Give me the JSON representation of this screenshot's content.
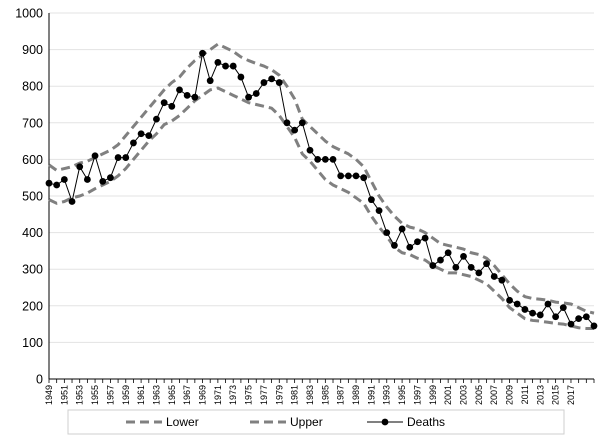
{
  "chart_data": {
    "type": "line",
    "title": "",
    "xlabel": "",
    "ylabel": "",
    "ylim": [
      0,
      1000
    ],
    "yticks": [
      0,
      100,
      200,
      300,
      400,
      500,
      600,
      700,
      800,
      900,
      1000
    ],
    "x": [
      1949,
      1950,
      1951,
      1952,
      1953,
      1954,
      1955,
      1956,
      1957,
      1958,
      1959,
      1960,
      1961,
      1962,
      1963,
      1964,
      1965,
      1966,
      1967,
      1968,
      1969,
      1970,
      1971,
      1972,
      1973,
      1974,
      1975,
      1976,
      1977,
      1978,
      1979,
      1980,
      1981,
      1982,
      1983,
      1984,
      1985,
      1986,
      1987,
      1988,
      1989,
      1990,
      1991,
      1992,
      1993,
      1994,
      1995,
      1996,
      1997,
      1998,
      1999,
      2000,
      2001,
      2002,
      2003,
      2004,
      2005,
      2006,
      2007,
      2008,
      2009,
      2010,
      2011,
      2012,
      2013,
      2014,
      2015,
      2016,
      2017,
      2018,
      2019,
      2020
    ],
    "xtick_labels": [
      "1949",
      "1951",
      "1953",
      "1955",
      "1957",
      "1959",
      "1961",
      "1963",
      "1965",
      "1967",
      "1969",
      "1971",
      "1973",
      "1975",
      "1977",
      "1979",
      "1981",
      "1983",
      "1985",
      "1987",
      "1989",
      "1991",
      "1993",
      "1995",
      "1997",
      "1999",
      "2001",
      "2003",
      "2005",
      "2007",
      "2009",
      "2011",
      "2013",
      "2015",
      "2017"
    ],
    "grid": "horizontal",
    "legend_position": "bottom",
    "series": [
      {
        "name": "Lower",
        "style": "dashed",
        "color": "#808080",
        "values": [
          490,
          480,
          485,
          495,
          500,
          508,
          520,
          530,
          540,
          555,
          575,
          600,
          625,
          650,
          670,
          695,
          705,
          720,
          740,
          760,
          775,
          790,
          795,
          785,
          775,
          765,
          755,
          750,
          745,
          740,
          720,
          690,
          660,
          615,
          595,
          570,
          545,
          530,
          520,
          510,
          495,
          480,
          445,
          415,
          390,
          360,
          345,
          340,
          330,
          325,
          310,
          300,
          290,
          290,
          285,
          280,
          270,
          260,
          240,
          220,
          195,
          180,
          165,
          160,
          158,
          155,
          152,
          150,
          145,
          140,
          138,
          138
        ]
      },
      {
        "name": "Upper",
        "style": "dashed",
        "color": "#808080",
        "values": [
          585,
          570,
          575,
          580,
          590,
          595,
          605,
          615,
          625,
          640,
          665,
          690,
          715,
          740,
          765,
          790,
          810,
          825,
          850,
          870,
          885,
          900,
          915,
          905,
          895,
          880,
          870,
          862,
          855,
          845,
          830,
          800,
          765,
          710,
          690,
          670,
          650,
          635,
          625,
          615,
          600,
          580,
          540,
          500,
          470,
          445,
          425,
          415,
          410,
          400,
          385,
          370,
          365,
          360,
          355,
          345,
          340,
          330,
          310,
          285,
          260,
          240,
          225,
          220,
          218,
          215,
          210,
          208,
          205,
          195,
          185,
          180
        ]
      },
      {
        "name": "Deaths",
        "style": "solid-markers",
        "color": "#000000",
        "values": [
          535,
          530,
          545,
          485,
          580,
          545,
          610,
          540,
          550,
          605,
          605,
          645,
          670,
          665,
          710,
          755,
          745,
          790,
          775,
          770,
          890,
          815,
          865,
          855,
          855,
          825,
          770,
          780,
          810,
          820,
          810,
          700,
          680,
          700,
          625,
          600,
          600,
          600,
          555,
          555,
          555,
          550,
          490,
          460,
          400,
          365,
          410,
          360,
          375,
          385,
          310,
          325,
          345,
          305,
          335,
          305,
          290,
          315,
          280,
          270,
          215,
          205,
          190,
          180,
          175,
          205,
          170,
          195,
          150,
          165,
          170,
          145
        ]
      }
    ]
  }
}
